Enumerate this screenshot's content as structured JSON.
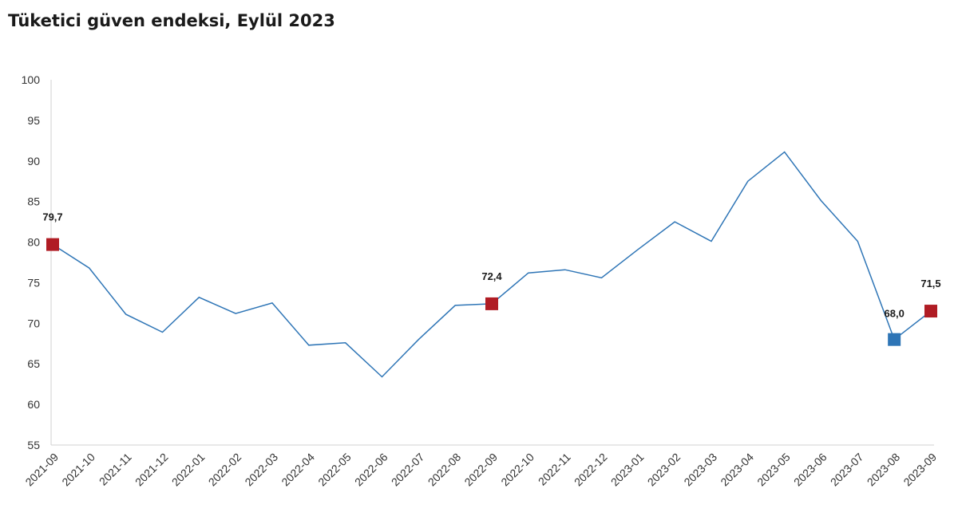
{
  "chart_data": {
    "type": "line",
    "title": "Tüketici güven endeksi, Eylül 2023",
    "xlabel": "",
    "ylabel": "",
    "ylim": [
      55,
      100
    ],
    "yticks": [
      55,
      60,
      65,
      70,
      75,
      80,
      85,
      90,
      95,
      100
    ],
    "grid": false,
    "legend": "none",
    "colors": {
      "line": "#2e75b6",
      "highlight_red": "#b01c24",
      "highlight_blue": "#2e75b6"
    },
    "categories": [
      "2021-09",
      "2021-10",
      "2021-11",
      "2021-12",
      "2022-01",
      "2022-02",
      "2022-03",
      "2022-04",
      "2022-05",
      "2022-06",
      "2022-07",
      "2022-08",
      "2022-09",
      "2022-10",
      "2022-11",
      "2022-12",
      "2023-01",
      "2023-02",
      "2023-03",
      "2023-04",
      "2023-05",
      "2023-06",
      "2023-07",
      "2023-08",
      "2023-09"
    ],
    "series": [
      {
        "values": [
          79.7,
          76.8,
          71.1,
          68.9,
          73.2,
          71.2,
          72.5,
          67.3,
          67.6,
          63.4,
          68.0,
          72.2,
          72.4,
          76.2,
          76.6,
          75.6,
          79.1,
          82.5,
          80.1,
          87.5,
          91.1,
          85.1,
          80.1,
          68.0,
          71.5
        ]
      }
    ],
    "markers": [
      {
        "index": 0,
        "label": "79,7",
        "color": "red"
      },
      {
        "index": 12,
        "label": "72,4",
        "color": "red"
      },
      {
        "index": 23,
        "label": "68,0",
        "color": "blue"
      },
      {
        "index": 24,
        "label": "71,5",
        "color": "red"
      }
    ]
  }
}
